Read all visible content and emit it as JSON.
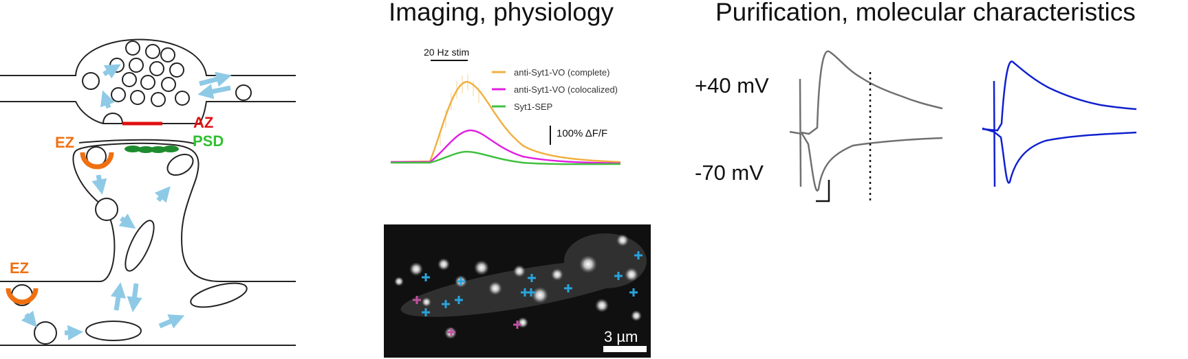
{
  "titles": {
    "imaging": "Imaging, physiology",
    "purification": "Purification, molecular characteristics"
  },
  "diagram": {
    "az": "AZ",
    "psd": "PSD",
    "ez_top": "EZ",
    "ez_bottom": "EZ"
  },
  "trace_plot": {
    "stim_label": "20 Hz stim",
    "scale_label": "100% ΔF/F",
    "legend": [
      {
        "name": "anti-Syt1-VO (complete)",
        "color": "#f0b040"
      },
      {
        "name": "anti-Syt1-VO (colocalized)",
        "color": "#e020e0"
      },
      {
        "name": "Syt1-SEP",
        "color": "#40c040"
      }
    ]
  },
  "micrograph": {
    "scale_label": "3 µm",
    "marker_colors": {
      "blue": "#29a3dc",
      "magenta": "#c050a0"
    }
  },
  "ephys": {
    "v_pos": "+40 mV",
    "v_neg": "-70 mV",
    "colors": {
      "gray": "#707070",
      "blue": "#1020d0"
    }
  },
  "colors": {
    "az": "#e01010",
    "psd": "#30c030",
    "ez": "#f07010",
    "arrow": "#8ecae6",
    "psd_density": "#1e8c2e"
  }
}
